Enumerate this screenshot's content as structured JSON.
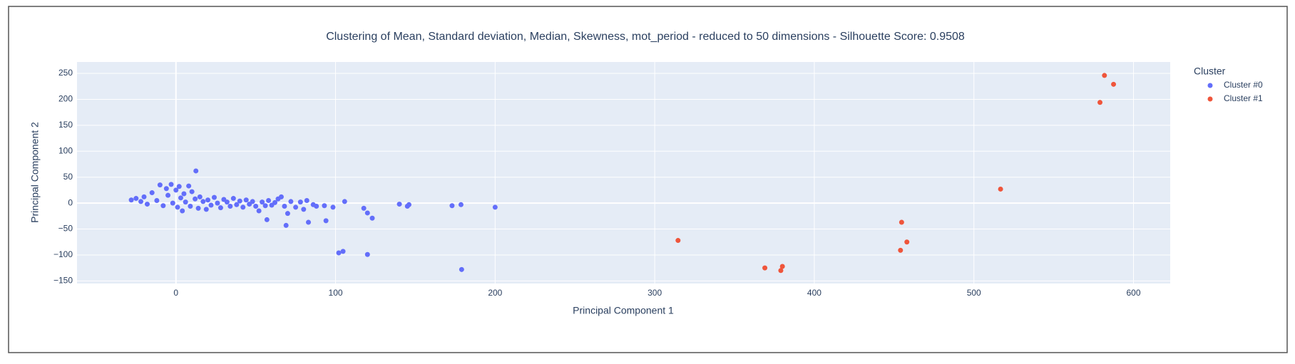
{
  "chart_data": {
    "type": "scatter",
    "title": "Clustering of Mean, Standard deviation, Median, Skewness, mot_period - reduced to 50 dimensions - Silhouette Score: 0.9508",
    "xlabel": "Principal Component 1",
    "ylabel": "Principal Component 2",
    "legend_title": "Cluster",
    "legend": "top-right-outside",
    "grid": true,
    "xlim": [
      -62,
      623
    ],
    "ylim": [
      -155,
      272
    ],
    "xticks": [
      0,
      100,
      200,
      300,
      400,
      500,
      600
    ],
    "yticks": [
      {
        "value": -150,
        "label": "−150"
      },
      {
        "value": -100,
        "label": "−100"
      },
      {
        "value": -50,
        "label": "−50"
      },
      0,
      50,
      100,
      150,
      200,
      250
    ],
    "series": [
      {
        "name": "Cluster #0",
        "color": "#636efa",
        "x": [
          -28,
          -25,
          -22,
          -20,
          -18,
          -15,
          -12,
          -10,
          -8,
          -6,
          -5,
          -3,
          -2,
          0,
          1,
          2,
          3,
          4,
          5,
          6,
          8,
          9,
          10,
          12,
          14,
          15,
          17,
          19,
          20,
          22,
          24,
          26,
          28,
          30,
          32,
          34,
          36,
          38,
          40,
          42,
          44,
          46,
          48,
          50,
          52,
          54,
          56,
          58,
          60,
          62,
          66,
          68,
          70,
          72,
          75,
          78,
          80,
          82,
          86,
          88,
          12.5,
          200,
          178.6,
          173,
          140,
          145,
          146,
          105.7,
          117.7,
          120,
          123,
          102,
          104.7,
          120,
          179,
          98.4,
          93,
          94,
          83,
          69,
          57,
          64
        ],
        "y": [
          6,
          9,
          3,
          12,
          -2,
          20,
          5,
          35,
          -5,
          28,
          15,
          36,
          0,
          25,
          -8,
          32,
          10,
          -15,
          18,
          2,
          33,
          -6,
          22,
          8,
          -10,
          12,
          3,
          -12,
          6,
          -4,
          11,
          0,
          -9,
          7,
          2,
          -6,
          9,
          -3,
          4,
          -8,
          6,
          -2,
          3,
          -6,
          -15,
          2,
          -5,
          5,
          -4,
          1,
          12,
          -6,
          -20,
          3,
          -8,
          2,
          -12,
          5,
          -3,
          -6,
          62,
          -8,
          -3,
          -5,
          -2,
          -6,
          -3,
          3,
          -10,
          -19,
          -29,
          -96,
          -93,
          -99,
          -128,
          -8,
          -5,
          -34,
          -37,
          -43,
          -32,
          8
        ]
      },
      {
        "name": "Cluster #1",
        "color": "#EF553B",
        "x": [
          581.8,
          587.5,
          579,
          516.7,
          454.7,
          458,
          454,
          314.6,
          369,
          380,
          379
        ],
        "y": [
          246,
          229,
          194,
          27,
          -37,
          -75,
          -91,
          -72,
          -125,
          -122,
          -130
        ]
      }
    ]
  }
}
